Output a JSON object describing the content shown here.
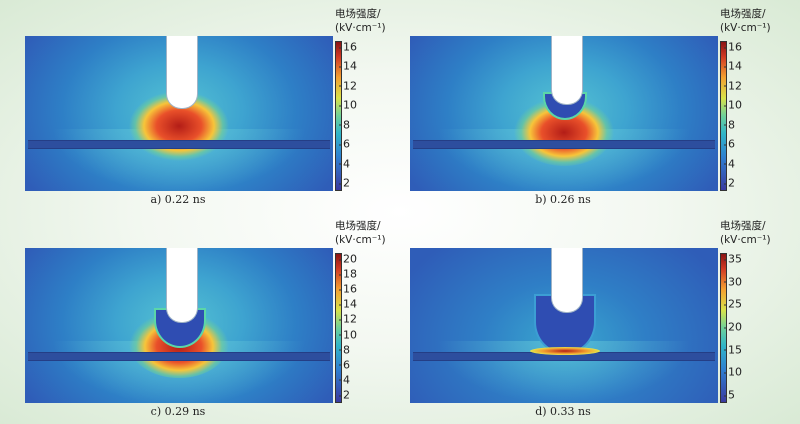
{
  "colorbar_title_line1": "电场强度/",
  "colorbar_title_line2": "(kV·cm⁻¹)",
  "panels": [
    {
      "caption": "a) 0.22 ns",
      "ticks": [
        "16",
        "14",
        "12",
        "10",
        "8",
        "6",
        "4",
        "2"
      ]
    },
    {
      "caption": "b) 0.26 ns",
      "ticks": [
        "16",
        "14",
        "12",
        "10",
        "8",
        "6",
        "4",
        "2"
      ]
    },
    {
      "caption": "c) 0.29 ns",
      "ticks": [
        "20",
        "18",
        "16",
        "14",
        "12",
        "10",
        "8",
        "6",
        "4",
        "2"
      ]
    },
    {
      "caption": "d) 0.33 ns",
      "ticks": [
        "35",
        "30",
        "25",
        "20",
        "15",
        "10",
        "5"
      ]
    }
  ],
  "colors": {
    "field_low": "#2f5db8",
    "field_mid": "#55c3d2",
    "field_high": "#d03a24",
    "dielectric": "#2d4e9e",
    "electrode": "#ffffff"
  }
}
